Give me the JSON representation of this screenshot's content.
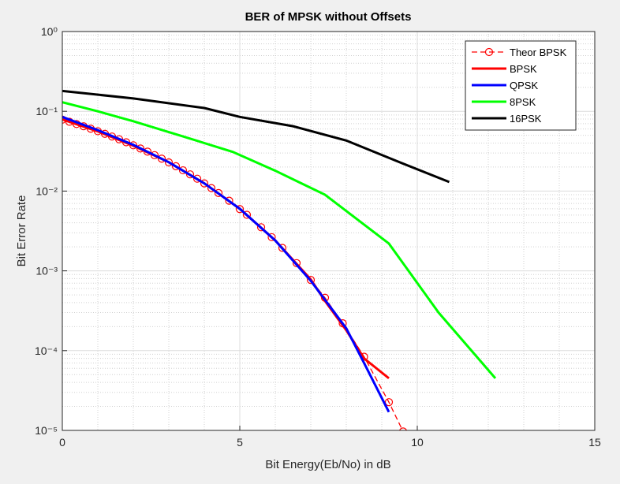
{
  "chart_data": {
    "type": "line",
    "title": "BER of MPSK without Offsets",
    "x_label": "Bit Energy(Eb/No) in dB",
    "y_label": "Bit Error Rate",
    "xlim": [
      0,
      15
    ],
    "xticks": [
      0,
      5,
      10,
      15
    ],
    "ylim": [
      1e-05,
      1
    ],
    "y_scale": "log",
    "yticks": [
      {
        "value": 1e-05,
        "label": "10⁻⁵"
      },
      {
        "value": 0.0001,
        "label": "10⁻⁴"
      },
      {
        "value": 0.001,
        "label": "10⁻³"
      },
      {
        "value": 0.01,
        "label": "10⁻²"
      },
      {
        "value": 0.1,
        "label": "10⁻¹"
      },
      {
        "value": 1,
        "label": "10⁰"
      }
    ],
    "grid": true,
    "minor_grid": true,
    "legend_position": "upper right",
    "series": [
      {
        "name": "Theor BPSK",
        "color": "#ff0000",
        "dash": true,
        "marker": "circle",
        "x": [
          0,
          0.2,
          0.4,
          0.6,
          0.8,
          1.0,
          1.2,
          1.4,
          1.6,
          1.8,
          2.0,
          2.2,
          2.4,
          2.6,
          2.8,
          3.0,
          3.2,
          3.4,
          3.6,
          3.8,
          4.0,
          4.2,
          4.4,
          4.7,
          5.0,
          5.2,
          5.6,
          5.9,
          6.2,
          6.6,
          7.0,
          7.4,
          7.9,
          8.5,
          9.2,
          9.6
        ],
        "values": [
          0.0786,
          0.0739,
          0.0693,
          0.0649,
          0.0605,
          0.0563,
          0.0522,
          0.0483,
          0.0446,
          0.0409,
          0.0375,
          0.0342,
          0.0312,
          0.0282,
          0.0255,
          0.0229,
          0.0205,
          0.0182,
          0.0162,
          0.0143,
          0.0125,
          0.0109,
          0.00946,
          0.00757,
          0.00595,
          0.00504,
          0.00352,
          0.00264,
          0.00194,
          0.00125,
          0.00077,
          0.00046,
          0.00022,
          8.4e-05,
          2.26e-05,
          9.7e-06
        ]
      },
      {
        "name": "BPSK",
        "color": "#ff0000",
        "x": [
          0,
          1,
          2,
          3,
          4,
          5,
          6,
          7,
          7.4,
          8,
          8.5,
          9.2
        ],
        "values": [
          0.079,
          0.056,
          0.037,
          0.023,
          0.0125,
          0.006,
          0.0024,
          0.00078,
          0.00042,
          0.00018,
          8e-05,
          4.5e-05
        ]
      },
      {
        "name": "QPSK",
        "color": "#0000ff",
        "x": [
          0,
          1,
          2,
          3,
          4,
          5,
          6,
          7,
          8,
          8.5,
          9.2
        ],
        "values": [
          0.085,
          0.058,
          0.038,
          0.023,
          0.0125,
          0.006,
          0.0024,
          0.00075,
          0.00019,
          7e-05,
          1.7e-05
        ]
      },
      {
        "name": "8PSK",
        "color": "#00ff00",
        "x": [
          0,
          1,
          2,
          3.3,
          4.8,
          6,
          7.4,
          9.2,
          10.6,
          12.2
        ],
        "values": [
          0.13,
          0.1,
          0.075,
          0.05,
          0.031,
          0.018,
          0.009,
          0.0022,
          0.0003,
          4.5e-05
        ]
      },
      {
        "name": "16PSK",
        "color": "#000000",
        "x": [
          0,
          2,
          4,
          5,
          6.5,
          8,
          9.5,
          10.9
        ],
        "values": [
          0.18,
          0.145,
          0.11,
          0.085,
          0.065,
          0.043,
          0.023,
          0.013
        ]
      }
    ]
  }
}
